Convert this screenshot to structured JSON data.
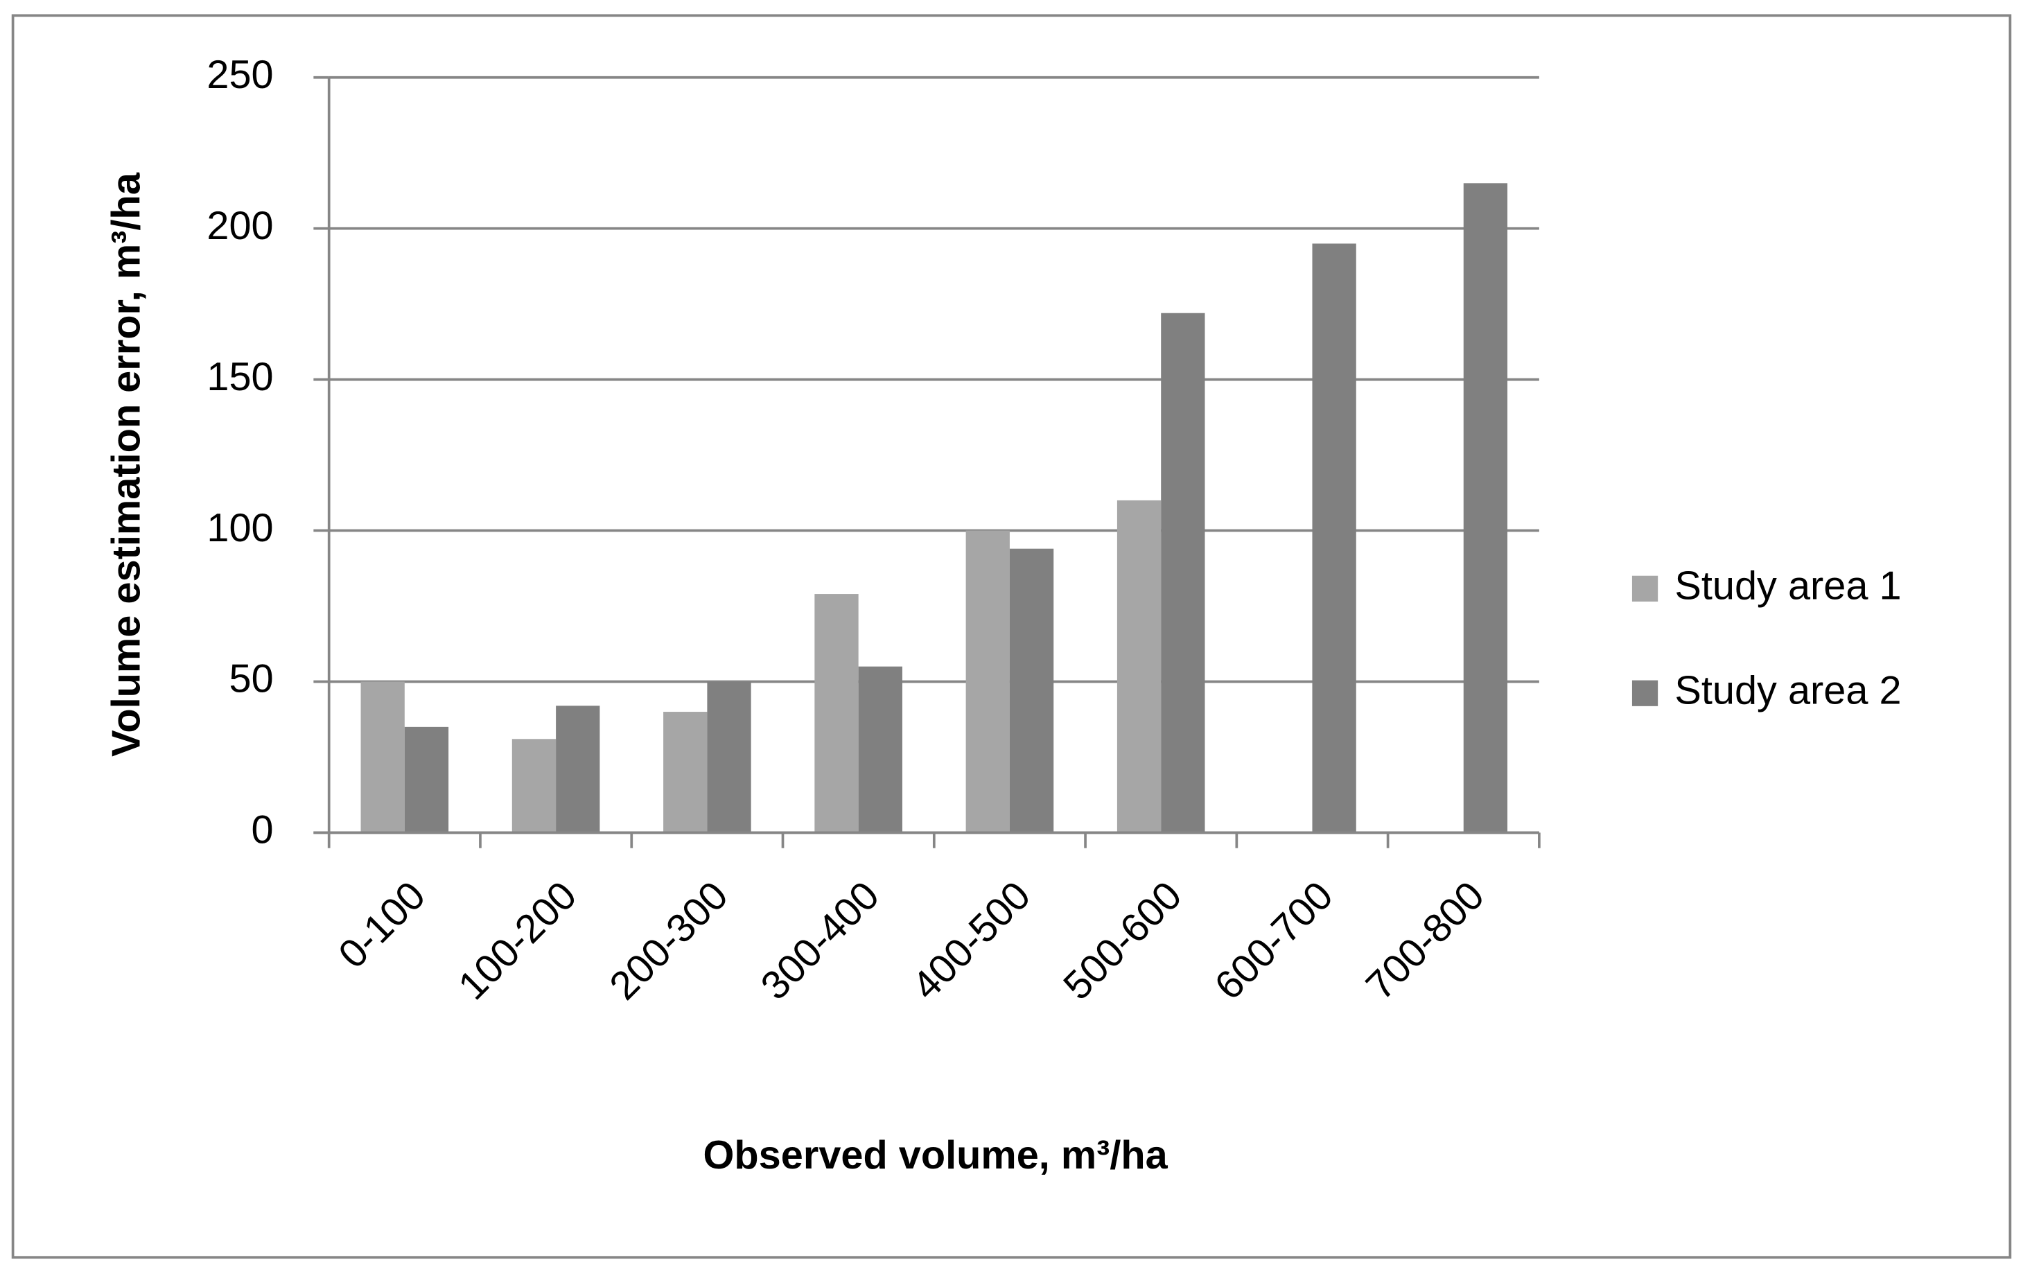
{
  "chart_data": {
    "type": "bar",
    "x_label": "Observed volume, m³/ha",
    "y_label": "Volume estimation error, m³/ha",
    "categories": [
      "0-100",
      "100-200",
      "200-300",
      "300-400",
      "400-500",
      "500-600",
      "600-700",
      "700-800"
    ],
    "series": [
      {
        "name": "Study area 1",
        "color": "#a6a6a6",
        "values": [
          50,
          31,
          40,
          79,
          100,
          110,
          null,
          null
        ]
      },
      {
        "name": "Study area 2",
        "color": "#808080",
        "values": [
          35,
          42,
          50,
          55,
          94,
          172,
          195,
          215
        ]
      }
    ],
    "ylim": [
      0,
      250
    ],
    "yticks": [
      0,
      50,
      100,
      150,
      200,
      250
    ],
    "grid": true,
    "legend": "right"
  }
}
